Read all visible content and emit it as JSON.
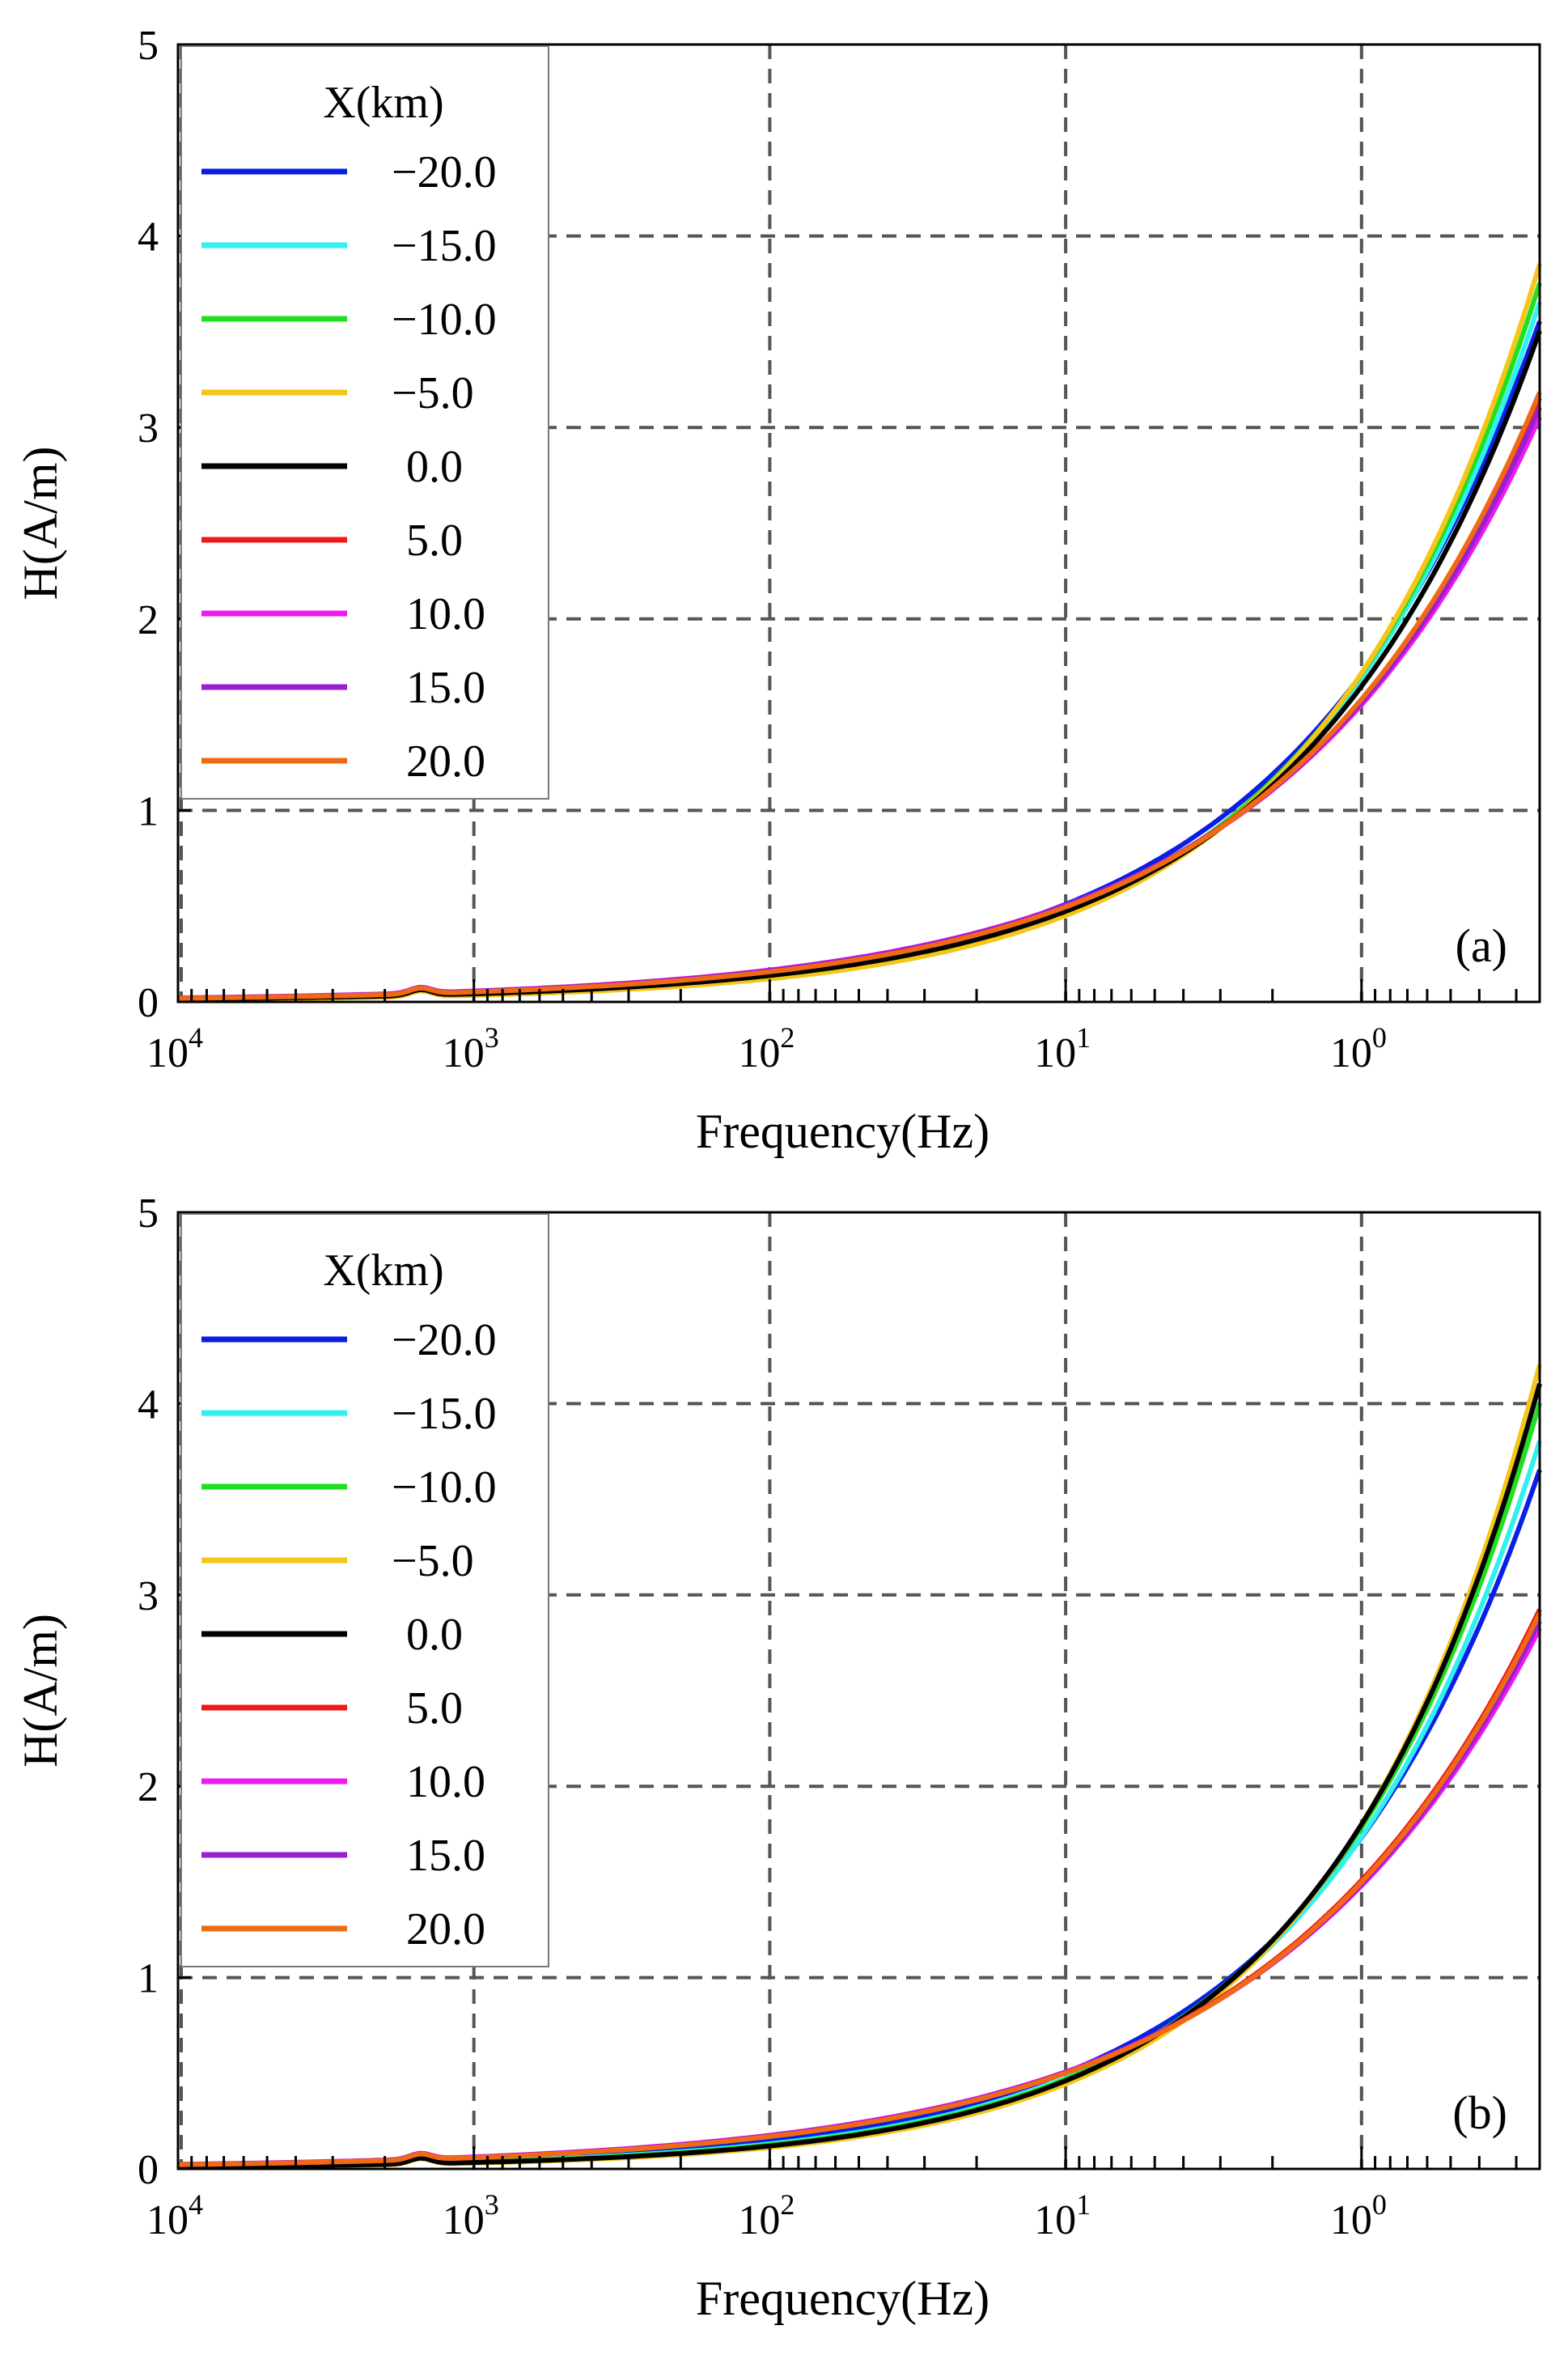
{
  "colors": {
    "grid": "#555555",
    "axis": "#000000",
    "series": {
      "−20.0": "#0a1ee6",
      "−15.0": "#30f0f0",
      "−10.0": "#20e020",
      "−5.0": "#f5c518",
      "0.0": "#000000",
      "5.0": "#f01818",
      "10.0": "#f018f0",
      "15.0": "#9a1ed2",
      "20.0": "#f06a14"
    }
  },
  "chart_data": [
    {
      "type": "line",
      "panel_label": "(a)",
      "xlabel": "Frequency(Hz)",
      "ylabel": "H(A/m)",
      "x_scale": "log-reversed",
      "xlim": [
        10000,
        0.25
      ],
      "ylim": [
        0,
        5
      ],
      "yticks": [
        "0",
        "1",
        "2",
        "3",
        "4",
        "5"
      ],
      "xticks": [
        {
          "base": "10",
          "exp": "4"
        },
        {
          "base": "10",
          "exp": "3"
        },
        {
          "base": "10",
          "exp": "2"
        },
        {
          "base": "10",
          "exp": "1"
        },
        {
          "base": "10",
          "exp": "0"
        }
      ],
      "grid": true,
      "legend_title": "X(km)",
      "legend_position": "top-left",
      "series": [
        {
          "name": "−20.0",
          "end_value": 3.55,
          "shape": 0.95
        },
        {
          "name": "−15.0",
          "end_value": 3.65,
          "shape": 1.0
        },
        {
          "name": "−10.0",
          "end_value": 3.75,
          "shape": 1.02
        },
        {
          "name": "−5.0",
          "end_value": 3.85,
          "shape": 1.05
        },
        {
          "name": "0.0",
          "end_value": 3.5,
          "shape": 0.98
        },
        {
          "name": "5.0",
          "end_value": 3.15,
          "shape": 0.9
        },
        {
          "name": "10.0",
          "end_value": 3.05,
          "shape": 0.88
        },
        {
          "name": "15.0",
          "end_value": 3.1,
          "shape": 0.89
        },
        {
          "name": "20.0",
          "end_value": 3.18,
          "shape": 0.91
        }
      ]
    },
    {
      "type": "line",
      "panel_label": "(b)",
      "xlabel": "Frequency(Hz)",
      "ylabel": "H(A/m)",
      "x_scale": "log-reversed",
      "xlim": [
        10000,
        0.25
      ],
      "ylim": [
        0,
        5
      ],
      "yticks": [
        "0",
        "1",
        "2",
        "3",
        "4",
        "5"
      ],
      "xticks": [
        {
          "base": "10",
          "exp": "4"
        },
        {
          "base": "10",
          "exp": "3"
        },
        {
          "base": "10",
          "exp": "2"
        },
        {
          "base": "10",
          "exp": "1"
        },
        {
          "base": "10",
          "exp": "0"
        }
      ],
      "grid": true,
      "legend_title": "X(km)",
      "legend_position": "top-left",
      "series": [
        {
          "name": "−20.0",
          "end_value": 3.65,
          "shape": 0.97
        },
        {
          "name": "−15.0",
          "end_value": 3.8,
          "shape": 1.02
        },
        {
          "name": "−10.0",
          "end_value": 4.0,
          "shape": 1.05
        },
        {
          "name": "−5.0",
          "end_value": 4.2,
          "shape": 1.1
        },
        {
          "name": "0.0",
          "end_value": 4.1,
          "shape": 1.07
        },
        {
          "name": "5.0",
          "end_value": 2.92,
          "shape": 0.86
        },
        {
          "name": "10.0",
          "end_value": 2.82,
          "shape": 0.84
        },
        {
          "name": "15.0",
          "end_value": 2.86,
          "shape": 0.85
        },
        {
          "name": "20.0",
          "end_value": 2.9,
          "shape": 0.86
        }
      ]
    }
  ]
}
